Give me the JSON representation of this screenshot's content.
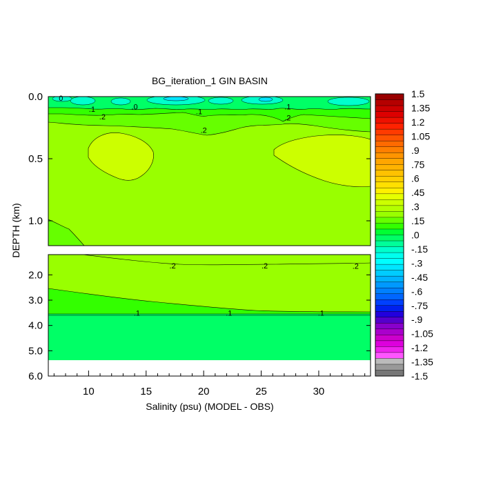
{
  "chart_data": {
    "type": "contour",
    "title": "BG_iteration_1 GIN BASIN",
    "xlabel": "Salinity (psu) (MODEL - OBS)",
    "ylabel": "DEPTH (km)",
    "xlim": [
      6.5,
      34.5
    ],
    "x_ticks": [
      {
        "value": 10,
        "label": "10"
      },
      {
        "value": 15,
        "label": "15"
      },
      {
        "value": 20,
        "label": "20"
      },
      {
        "value": 25,
        "label": "25"
      },
      {
        "value": 30,
        "label": "30"
      }
    ],
    "upper_panel": {
      "ylim": [
        0.0,
        1.2
      ],
      "y_ticks": [
        {
          "value": 0.0,
          "label": "0.0"
        },
        {
          "value": 0.5,
          "label": "0.5"
        },
        {
          "value": 1.0,
          "label": "1.0"
        }
      ]
    },
    "lower_panel": {
      "ylim": [
        1.2,
        6.0
      ],
      "y_ticks": [
        {
          "value": 2.0,
          "label": "2.0"
        },
        {
          "value": 3.0,
          "label": "3.0"
        },
        {
          "value": 4.0,
          "label": "4.0"
        },
        {
          "value": 5.0,
          "label": "5.0"
        },
        {
          "value": 6.0,
          "label": "6.0"
        }
      ]
    },
    "colorbar": {
      "range": [
        -1.5,
        1.5
      ],
      "labels": [
        "1.5",
        "1.35",
        "1.2",
        "1.05",
        ".9",
        ".75",
        ".6",
        ".45",
        ".3",
        ".15",
        ".0",
        "-.15",
        "-.3",
        "-.45",
        "-.6",
        "-.75",
        "-.9",
        "-1.05",
        "-1.2",
        "-1.35",
        "-1.5"
      ],
      "label_values": [
        1.5,
        1.35,
        1.2,
        1.05,
        0.9,
        0.75,
        0.6,
        0.45,
        0.3,
        0.15,
        0.0,
        -0.15,
        -0.3,
        -0.45,
        -0.6,
        -0.75,
        -0.9,
        -1.05,
        -1.2,
        -1.35,
        -1.5
      ],
      "colors_top_to_bottom": [
        "#990000",
        "#b50000",
        "#cc0000",
        "#dd0000",
        "#ee1100",
        "#ff2200",
        "#ff3b00",
        "#ff5400",
        "#ff6a00",
        "#ff7f00",
        "#ff9400",
        "#ffa600",
        "#ffb300",
        "#ffc200",
        "#ffd000",
        "#ffe000",
        "#fff000",
        "#e6ff00",
        "#ccff00",
        "#b3ff00",
        "#99ff00",
        "#66ff00",
        "#33ff00",
        "#00ff33",
        "#00ff66",
        "#00ff99",
        "#00ffcc",
        "#00ffee",
        "#00ffff",
        "#00e6ff",
        "#00ccff",
        "#00b3ff",
        "#0099ff",
        "#0080ff",
        "#0066ff",
        "#0040ff",
        "#0020ee",
        "#2200dd",
        "#5500cc",
        "#8800cc",
        "#aa00cc",
        "#cc00cc",
        "#dd00dd",
        "#ee22ee",
        "#ff55ff",
        "#bbbbbb",
        "#999999",
        "#777777"
      ]
    },
    "contour_labels": [
      {
        "text": "0",
        "x": 7.6,
        "depth": 0.01
      },
      {
        "text": ".1",
        "x": 10.3,
        "depth": 0.1
      },
      {
        "text": ".0",
        "x": 14.0,
        "depth": 0.08
      },
      {
        "text": ".2",
        "x": 11.2,
        "depth": 0.16
      },
      {
        "text": ".1",
        "x": 19.6,
        "depth": 0.12
      },
      {
        "text": ".2",
        "x": 20.0,
        "depth": 0.27
      },
      {
        "text": ".1",
        "x": 27.3,
        "depth": 0.08
      },
      {
        "text": ".2",
        "x": 27.3,
        "depth": 0.17
      },
      {
        "text": ".2",
        "x": 17.3,
        "depth": 1.64
      },
      {
        "text": ".2",
        "x": 25.3,
        "depth": 1.64
      },
      {
        "text": ".2",
        "x": 33.2,
        "depth": 1.65
      },
      {
        "text": ".1",
        "x": 14.2,
        "depth": 3.5
      },
      {
        "text": ".1",
        "x": 22.2,
        "depth": 3.5
      },
      {
        "text": ".1",
        "x": 30.2,
        "depth": 3.5
      }
    ],
    "colors": {
      "background_field": "#99ff00",
      "positive_blob": "#ccff00",
      "band_015": "#66ff00",
      "band_01": "#33ff00",
      "band_00": "#00ff66",
      "negative_surface": "#00ffcc",
      "negative_core": "#00e6ff",
      "missing_data": "#ffffff"
    }
  }
}
